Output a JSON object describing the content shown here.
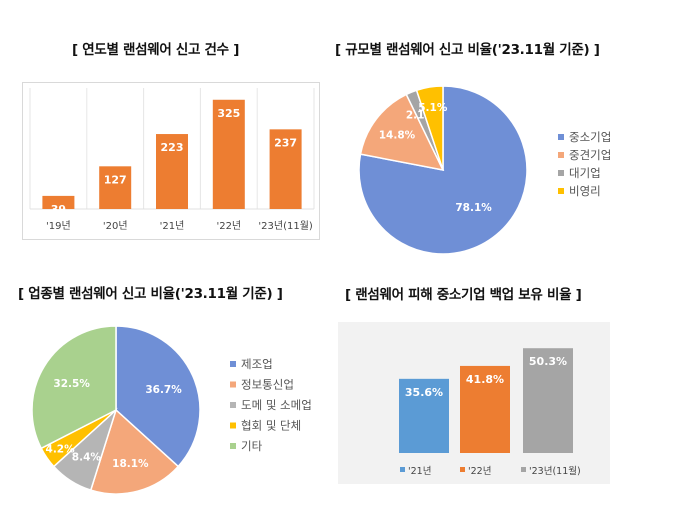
{
  "chart_data": [
    {
      "type": "bar",
      "title": "[ 연도별 랜섬웨어 신고 건수 ]",
      "categories": [
        "'19년",
        "'20년",
        "'21년",
        "'22년",
        "'23년(11월)"
      ],
      "values": [
        39,
        127,
        223,
        325,
        237
      ],
      "ylim": [
        0,
        360
      ],
      "grid": true,
      "colors": [
        "#ed7d31"
      ]
    },
    {
      "type": "pie",
      "title": "[ 규모별 랜섬웨어 신고 비율('23.11월 기준) ]",
      "labels": [
        "중소기업",
        "중견기업",
        "대기업",
        "비영리"
      ],
      "values": [
        78.1,
        14.8,
        2.1,
        5.1
      ],
      "value_labels": [
        "78.1%",
        "14.8%",
        "2.1%",
        "5.1%"
      ],
      "colors": [
        "#6f8fd6",
        "#f4a77a",
        "#a5a5a5",
        "#ffc000"
      ],
      "legend": "right"
    },
    {
      "type": "pie",
      "title": "[ 업종별 랜섬웨어 신고 비율('23.11월 기준) ]",
      "labels": [
        "제조업",
        "정보통신업",
        "도메 및 소메업",
        "협회 및 단체",
        "기타"
      ],
      "values": [
        36.7,
        18.1,
        8.4,
        4.2,
        32.5
      ],
      "value_labels": [
        "36.7%",
        "18.1%",
        "8.4%",
        "4.2%",
        "32.5%"
      ],
      "colors": [
        "#6f8fd6",
        "#f4a77a",
        "#b5b5b5",
        "#ffc000",
        "#a9d18e"
      ],
      "legend": "right"
    },
    {
      "type": "bar",
      "title": "[ 랜섬웨어 피해 중소기업 백업 보유 비율 ]",
      "categories": [
        "'21년",
        "'22년",
        "'23년(11월)"
      ],
      "values": [
        35.6,
        41.8,
        50.3
      ],
      "value_labels": [
        "35.6%",
        "41.8%",
        "50.3%"
      ],
      "ylim": [
        0,
        60
      ],
      "colors": [
        "#5b9bd5",
        "#ed7d31",
        "#a5a5a5"
      ],
      "legend": "bottom"
    }
  ]
}
